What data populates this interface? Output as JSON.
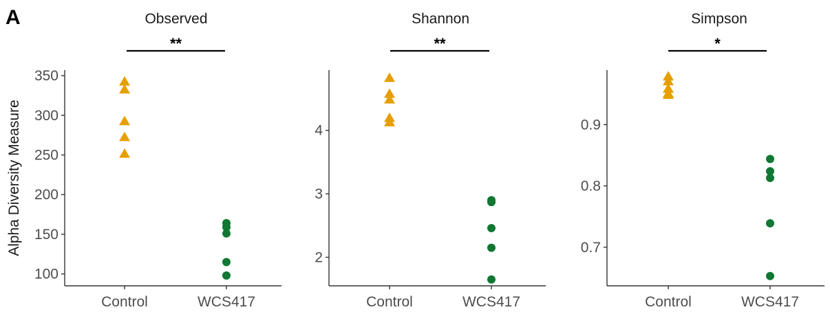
{
  "panel_label": "A",
  "chart_data": [
    {
      "type": "scatter",
      "title": "Observed",
      "ylabel": "Alpha Diversity Measure",
      "categories": [
        "Control",
        "WCS417"
      ],
      "ylim": [
        85,
        357
      ],
      "yticks": [
        100,
        150,
        200,
        250,
        300,
        350
      ],
      "ytick_labels": [
        "100",
        "150",
        "200",
        "250",
        "300",
        "350"
      ],
      "significance": "**",
      "series": [
        {
          "category": "Control",
          "marker": "triangle",
          "color": "#E69F00",
          "values": [
            342,
            332,
            292,
            272,
            251
          ]
        },
        {
          "category": "WCS417",
          "marker": "circle",
          "color": "#117733",
          "values": [
            164,
            159,
            151,
            115,
            98
          ]
        }
      ]
    },
    {
      "type": "scatter",
      "title": "Shannon",
      "ylabel": "",
      "categories": [
        "Control",
        "WCS417"
      ],
      "ylim": [
        1.55,
        4.95
      ],
      "yticks": [
        2,
        3,
        4
      ],
      "ytick_labels": [
        "2",
        "3",
        "4"
      ],
      "significance": "**",
      "series": [
        {
          "category": "Control",
          "marker": "triangle",
          "color": "#E69F00",
          "values": [
            4.82,
            4.57,
            4.48,
            4.19,
            4.12
          ]
        },
        {
          "category": "WCS417",
          "marker": "circle",
          "color": "#117733",
          "values": [
            2.9,
            2.87,
            2.46,
            2.15,
            1.65
          ]
        }
      ]
    },
    {
      "type": "scatter",
      "title": "Simpson",
      "ylabel": "",
      "categories": [
        "Control",
        "WCS417"
      ],
      "ylim": [
        0.637,
        0.989
      ],
      "yticks": [
        0.7,
        0.8,
        0.9
      ],
      "ytick_labels": [
        "0.7",
        "0.8",
        "0.9"
      ],
      "significance": "*",
      "series": [
        {
          "category": "Control",
          "marker": "triangle",
          "color": "#E69F00",
          "values": [
            0.978,
            0.97,
            0.958,
            0.95,
            0.948
          ]
        },
        {
          "category": "WCS417",
          "marker": "circle",
          "color": "#117733",
          "values": [
            0.844,
            0.824,
            0.813,
            0.739,
            0.653
          ]
        }
      ]
    }
  ]
}
